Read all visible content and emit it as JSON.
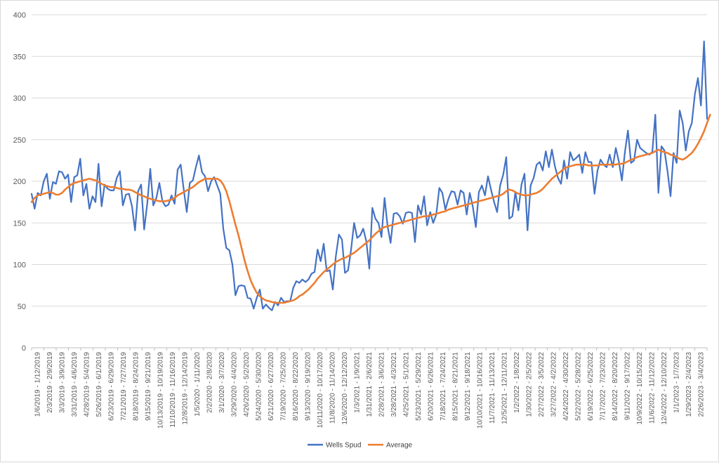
{
  "chart_data": {
    "type": "line",
    "title": "",
    "xlabel": "",
    "ylabel": "",
    "ylim": [
      0,
      400
    ],
    "yticks": [
      0,
      50,
      100,
      150,
      200,
      250,
      300,
      350,
      400
    ],
    "grid": "horizontal",
    "legend_position": "bottom",
    "x_tick_labels": [
      "1/6/2019 - 1/12/2019",
      "2/3/2019 - 2/9/2019",
      "3/3/2019 - 3/9/2019",
      "3/31/2019 - 4/6/2019",
      "4/28/2019 - 5/4/2019",
      "5/26/2019 - 6/1/2019",
      "6/23/2019 - 6/29/2019",
      "7/21/2019 - 7/27/2019",
      "8/18/2019 - 8/24/2019",
      "9/15/2019 - 9/21/2019",
      "10/13/2019 - 10/19/2019",
      "11/10/2019 - 11/16/2019",
      "12/8/2019 - 12/14/2019",
      "1/5/2020 - 1/11/2020",
      "2/2/2020 - 2/8/2020",
      "3/1/2020 - 3/7/2020",
      "3/29/2020 - 4/4/2020",
      "4/26/2020 - 5/2/2020",
      "5/24/2020 - 5/30/2020",
      "6/21/2020 - 6/27/2020",
      "7/19/2020 - 7/25/2020",
      "8/16/2020 - 8/22/2020",
      "9/13/2020 - 9/19/2020",
      "10/11/2020 - 10/17/2020",
      "11/8/2020 - 11/14/2020",
      "12/6/2020 - 12/12/2020",
      "1/3/2021 - 1/9/2021",
      "1/31/2021 - 2/6/2021",
      "2/28/2021 - 3/6/2021",
      "3/28/2021 - 4/3/2021",
      "4/25/2021 - 5/1/2021",
      "5/23/2021 - 5/29/2021",
      "6/20/2021 - 6/26/2021",
      "7/18/2021 - 7/24/2021",
      "8/15/2021 - 8/21/2021",
      "9/12/2021 - 9/18/2021",
      "10/10/2021 - 10/16/2021",
      "11/7/2021 - 11/13/2021",
      "12/5/2021 - 12/11/2021",
      "1/2/2022 - 1/8/2022",
      "1/30/2022 - 2/5/2022",
      "2/27/2022 - 3/5/2022",
      "3/27/2022 - 4/2/2022",
      "4/24/2022 - 4/30/2022",
      "5/22/2022 - 5/28/2022",
      "6/19/2022 - 6/25/2022",
      "7/17/2022 - 7/23/2022",
      "8/14/2022 - 8/20/2022",
      "9/11/2022 - 9/17/2022",
      "10/9/2022 - 10/15/2022",
      "11/6/2022 - 11/12/2022",
      "12/4/2022 - 12/10/2022",
      "1/1/2023 - 1/7/2023",
      "1/29/2023 - 2/4/2023",
      "2/26/2023 - 3/4/2023"
    ],
    "series": [
      {
        "name": "Wells Spud",
        "color": "#4472c4",
        "values": [
          185,
          167,
          186,
          183,
          200,
          209,
          179,
          199,
          197,
          212,
          211,
          203,
          208,
          175,
          205,
          207,
          227,
          183,
          197,
          167,
          182,
          175,
          221,
          170,
          196,
          191,
          189,
          189,
          204,
          212,
          171,
          184,
          185,
          170,
          141,
          188,
          196,
          142,
          173,
          215,
          171,
          180,
          198,
          176,
          170,
          172,
          183,
          173,
          214,
          220,
          190,
          163,
          198,
          201,
          217,
          231,
          211,
          206,
          188,
          200,
          205,
          195,
          185,
          143,
          120,
          117,
          100,
          63,
          74,
          75,
          74,
          60,
          59,
          47,
          60,
          70,
          47,
          52,
          48,
          45,
          55,
          51,
          60,
          55,
          56,
          56,
          72,
          80,
          78,
          82,
          79,
          82,
          89,
          91,
          118,
          104,
          125,
          92,
          93,
          70,
          110,
          136,
          130,
          90,
          93,
          118,
          150,
          132,
          135,
          143,
          128,
          95,
          168,
          155,
          150,
          133,
          180,
          146,
          126,
          161,
          162,
          158,
          149,
          162,
          163,
          162,
          127,
          171,
          160,
          182,
          147,
          163,
          150,
          160,
          192,
          186,
          166,
          179,
          188,
          187,
          172,
          189,
          186,
          160,
          186,
          170,
          145,
          187,
          195,
          183,
          206,
          190,
          175,
          163,
          195,
          208,
          229,
          155,
          158,
          187,
          165,
          196,
          209,
          141,
          195,
          204,
          220,
          223,
          213,
          236,
          217,
          238,
          218,
          204,
          197,
          225,
          203,
          235,
          225,
          228,
          232,
          210,
          235,
          223,
          223,
          185,
          213,
          226,
          220,
          217,
          232,
          217,
          240,
          224,
          201,
          235,
          261,
          222,
          225,
          250,
          240,
          237,
          234,
          232,
          235,
          280,
          186,
          242,
          237,
          212,
          182,
          234,
          222,
          285,
          270,
          237,
          260,
          270,
          305,
          324,
          291,
          368,
          275
        ]
      },
      {
        "name": "Average",
        "color": "#ed7d31",
        "values": [
          175,
          180,
          183,
          184,
          185,
          186,
          187,
          186,
          184,
          184,
          186,
          190,
          193,
          196,
          198,
          199,
          200,
          201,
          202,
          203,
          202,
          201,
          199,
          197,
          195,
          194,
          193,
          193,
          192,
          191,
          191,
          190,
          190,
          189,
          187,
          185,
          183,
          182,
          180,
          179,
          178,
          177,
          176,
          176,
          176,
          177,
          178,
          180,
          183,
          185,
          187,
          189,
          191,
          193,
          196,
          199,
          201,
          203,
          203,
          203,
          203,
          203,
          201,
          196,
          188,
          176,
          162,
          148,
          135,
          120,
          105,
          92,
          81,
          73,
          66,
          62,
          59,
          57,
          56,
          55,
          54,
          54,
          54,
          54,
          55,
          56,
          57,
          59,
          62,
          64,
          67,
          70,
          74,
          78,
          83,
          87,
          91,
          94,
          97,
          100,
          103,
          105,
          107,
          108,
          110,
          112,
          114,
          117,
          120,
          123,
          126,
          129,
          133,
          137,
          140,
          143,
          145,
          146,
          147,
          148,
          149,
          150,
          151,
          152,
          153,
          154,
          155,
          156,
          157,
          158,
          158,
          159,
          160,
          161,
          162,
          163,
          164,
          166,
          167,
          168,
          169,
          170,
          171,
          172,
          173,
          174,
          175,
          176,
          177,
          178,
          179,
          180,
          181,
          182,
          183,
          185,
          188,
          190,
          189,
          187,
          185,
          184,
          183,
          183,
          184,
          185,
          186,
          188,
          191,
          195,
          199,
          203,
          206,
          209,
          212,
          215,
          217,
          218,
          219,
          220,
          220,
          220,
          220,
          219,
          219,
          219,
          219,
          220,
          220,
          220,
          220,
          220,
          220,
          221,
          221,
          222,
          224,
          226,
          227,
          229,
          230,
          231,
          232,
          233,
          234,
          236,
          238,
          236,
          235,
          234,
          232,
          231,
          229,
          227,
          226,
          228,
          231,
          234,
          239,
          245,
          252,
          260,
          270,
          280
        ]
      }
    ]
  }
}
